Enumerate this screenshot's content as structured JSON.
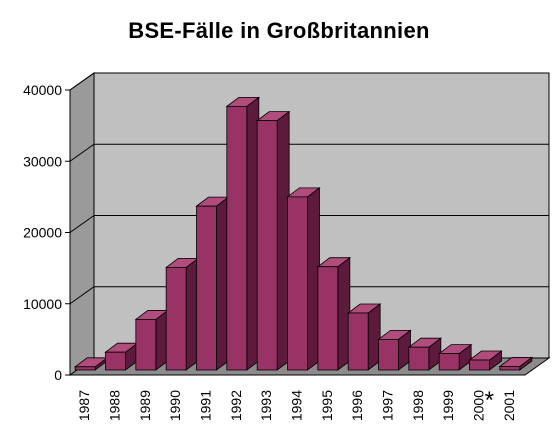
{
  "chart_data": {
    "type": "bar",
    "title": "BSE-Fälle in Großbritannien",
    "xlabel": "",
    "ylabel": "",
    "categories": [
      "1987",
      "1988",
      "1989",
      "1990",
      "1991",
      "1992",
      "1993",
      "1994",
      "1995",
      "1996",
      "1997",
      "1998",
      "1999",
      "2000",
      "2001"
    ],
    "values": [
      450,
      2500,
      7100,
      14400,
      23000,
      37000,
      35000,
      24300,
      14500,
      8000,
      4300,
      3200,
      2300,
      1400,
      500
    ],
    "ylim": [
      0,
      40000
    ],
    "yticks": [
      "0",
      "10000",
      "20000",
      "30000",
      "40000"
    ],
    "grid": true,
    "three_d": true,
    "legend": "none",
    "annotation": "*",
    "colors": {
      "bar_front": "#993366",
      "bar_top": "#b04d7d",
      "bar_side": "#5e1a3d",
      "wall": "#c0c0c0"
    }
  }
}
